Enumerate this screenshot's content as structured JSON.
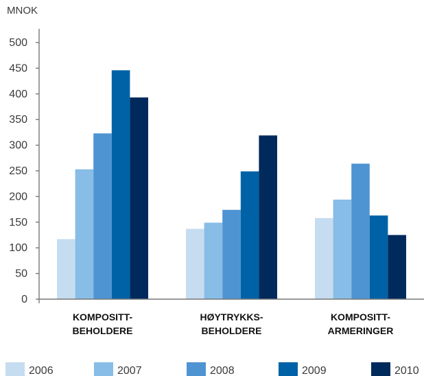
{
  "chart_data": {
    "type": "bar",
    "unit_label": "MNOK",
    "categories": [
      [
        "KOMPOSITT-",
        "BEHOLDERE"
      ],
      [
        "HØYTRYKKS-",
        "BEHOLDERE"
      ],
      [
        "KOMPOSITT-",
        "ARMERINGER"
      ]
    ],
    "series": [
      {
        "name": "2006",
        "color": "#c6dcf0",
        "values": [
          117,
          137,
          158
        ]
      },
      {
        "name": "2007",
        "color": "#87bde6",
        "values": [
          253,
          149,
          194
        ]
      },
      {
        "name": "2008",
        "color": "#4f94d2",
        "values": [
          323,
          174,
          264
        ]
      },
      {
        "name": "2009",
        "color": "#0062a6",
        "values": [
          446,
          249,
          163
        ]
      },
      {
        "name": "2010",
        "color": "#002a5c",
        "values": [
          393,
          319,
          125
        ]
      }
    ],
    "ylim": [
      0,
      500
    ],
    "yticks": [
      0,
      50,
      100,
      150,
      200,
      250,
      300,
      350,
      400,
      450,
      500
    ],
    "grid": false,
    "legend_position": "bottom"
  }
}
